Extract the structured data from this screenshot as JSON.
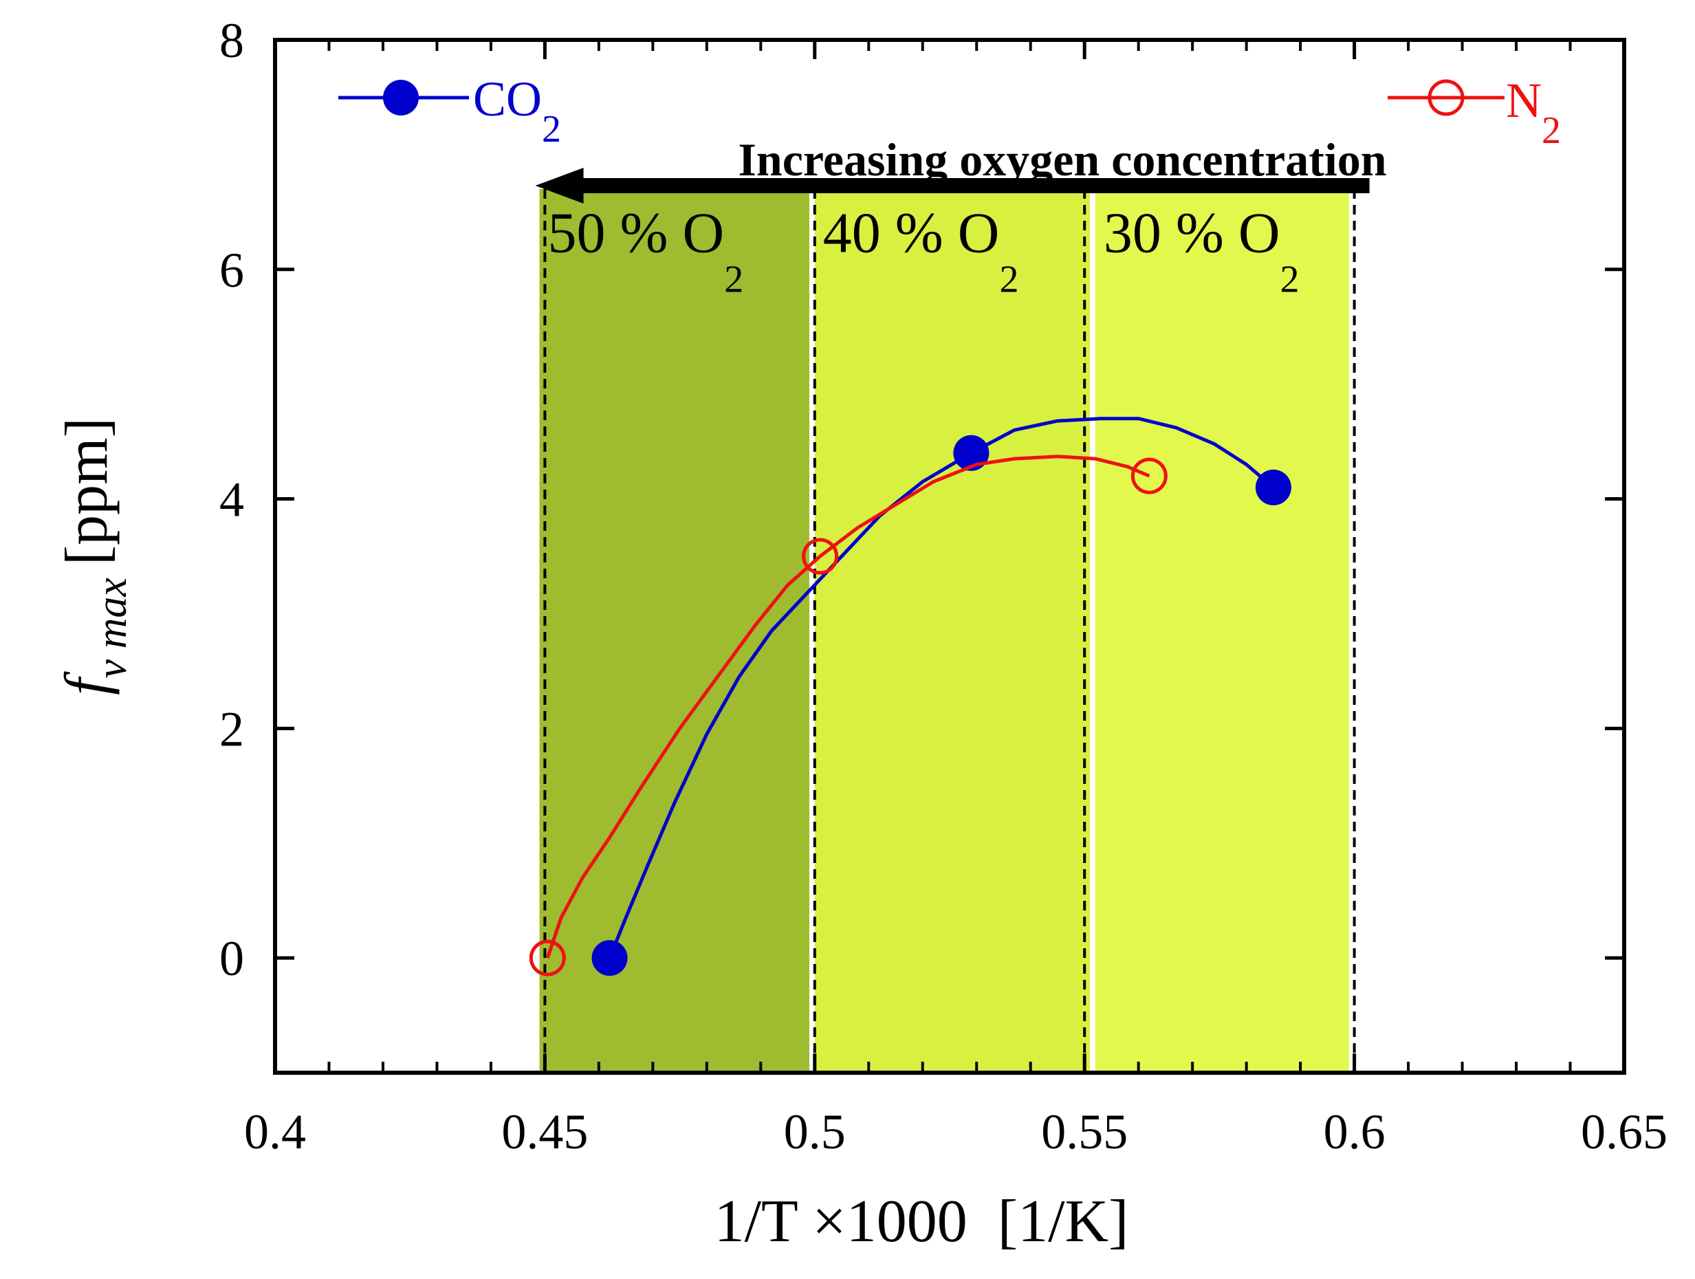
{
  "chart_data": {
    "type": "line",
    "xlabel": "1/T ×1000  [1/K]",
    "ylabel": {
      "symbol": "f",
      "subscript": "v max",
      "unit": "[ppm]"
    },
    "xlim": [
      0.4,
      0.65
    ],
    "ylim": [
      -1,
      8
    ],
    "x_ticks": [
      "0.4",
      "0.45",
      "0.5",
      "0.55",
      "0.6",
      "0.65"
    ],
    "y_ticks": [
      "0",
      "2",
      "4",
      "6",
      "8"
    ],
    "bands": [
      {
        "label": "50 % O",
        "sub": "2",
        "x0": 0.449,
        "x1": 0.499,
        "color": "#9fbb2f"
      },
      {
        "label": "40 % O",
        "sub": "2",
        "x0": 0.5,
        "x1": 0.551,
        "color": "#d8f040"
      },
      {
        "label": "30 % O",
        "sub": "2",
        "x0": 0.552,
        "x1": 0.599,
        "color": "#e2f84c"
      }
    ],
    "dashed_lines_x": [
      0.45,
      0.5,
      0.55,
      0.6
    ],
    "annotation": {
      "text": "Increasing oxygen concentration",
      "arrow_from_x": 0.6,
      "arrow_to_x": 0.449,
      "arrow_y": 6.7
    },
    "series": [
      {
        "name": "CO",
        "sub": "2",
        "color": "#0000cc",
        "marker": "filled-circle",
        "points": [
          {
            "x": 0.462,
            "y": 0.0
          },
          {
            "x": 0.529,
            "y": 4.4
          },
          {
            "x": 0.585,
            "y": 4.1
          }
        ],
        "curve": [
          [
            0.462,
            0.0
          ],
          [
            0.465,
            0.35
          ],
          [
            0.469,
            0.8
          ],
          [
            0.474,
            1.35
          ],
          [
            0.48,
            1.95
          ],
          [
            0.486,
            2.45
          ],
          [
            0.492,
            2.85
          ],
          [
            0.498,
            3.15
          ],
          [
            0.505,
            3.5
          ],
          [
            0.512,
            3.85
          ],
          [
            0.52,
            4.15
          ],
          [
            0.529,
            4.4
          ],
          [
            0.537,
            4.6
          ],
          [
            0.545,
            4.68
          ],
          [
            0.553,
            4.7
          ],
          [
            0.56,
            4.7
          ],
          [
            0.567,
            4.62
          ],
          [
            0.574,
            4.48
          ],
          [
            0.58,
            4.3
          ],
          [
            0.585,
            4.1
          ]
        ]
      },
      {
        "name": "N",
        "sub": "2",
        "color": "#ee1111",
        "marker": "open-circle",
        "points": [
          {
            "x": 0.4505,
            "y": 0.0
          },
          {
            "x": 0.501,
            "y": 3.5
          },
          {
            "x": 0.562,
            "y": 4.2
          }
        ],
        "curve": [
          [
            0.4505,
            0.0
          ],
          [
            0.453,
            0.35
          ],
          [
            0.457,
            0.7
          ],
          [
            0.462,
            1.05
          ],
          [
            0.468,
            1.5
          ],
          [
            0.475,
            2.0
          ],
          [
            0.482,
            2.45
          ],
          [
            0.489,
            2.9
          ],
          [
            0.495,
            3.25
          ],
          [
            0.501,
            3.5
          ],
          [
            0.508,
            3.75
          ],
          [
            0.515,
            3.95
          ],
          [
            0.522,
            4.15
          ],
          [
            0.53,
            4.3
          ],
          [
            0.537,
            4.35
          ],
          [
            0.545,
            4.37
          ],
          [
            0.552,
            4.35
          ],
          [
            0.558,
            4.28
          ],
          [
            0.562,
            4.2
          ]
        ]
      }
    ],
    "legend": [
      {
        "name": "CO",
        "sub": "2",
        "placement": "top-left"
      },
      {
        "name": "N",
        "sub": "2",
        "placement": "top-right"
      }
    ]
  }
}
